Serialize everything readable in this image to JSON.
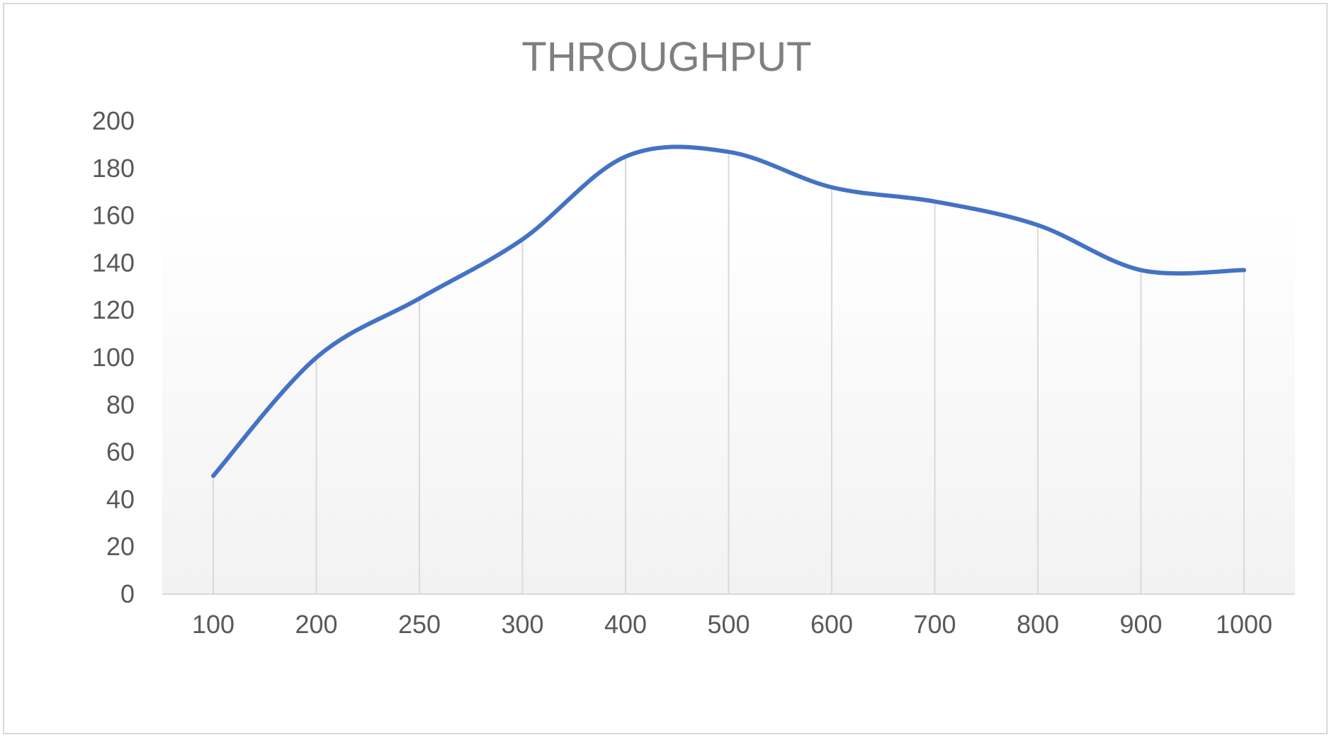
{
  "chart_data": {
    "type": "line",
    "title": "THROUGHPUT",
    "xlabel": "",
    "ylabel": "",
    "categories": [
      "100",
      "200",
      "250",
      "300",
      "400",
      "500",
      "600",
      "700",
      "800",
      "900",
      "1000"
    ],
    "series": [
      {
        "values": [
          50,
          100,
          125,
          150,
          185,
          187,
          172,
          166,
          156,
          137,
          137
        ],
        "color": "#4472c4",
        "smooth": true
      }
    ],
    "ylim": [
      0,
      200
    ],
    "yticks": [
      "0",
      "20",
      "40",
      "60",
      "80",
      "100",
      "120",
      "140",
      "160",
      "180",
      "200"
    ],
    "grid": "vertical",
    "legend": "none",
    "colors": {
      "line": "#4472c4",
      "gridline": "#d9d9d9",
      "axis": "#d9d9d9",
      "plot_gradient_top": "#ffffff",
      "plot_gradient_bottom": "#f2f2f2",
      "tick_text": "#595959",
      "title_text": "#7f7f7f"
    }
  }
}
